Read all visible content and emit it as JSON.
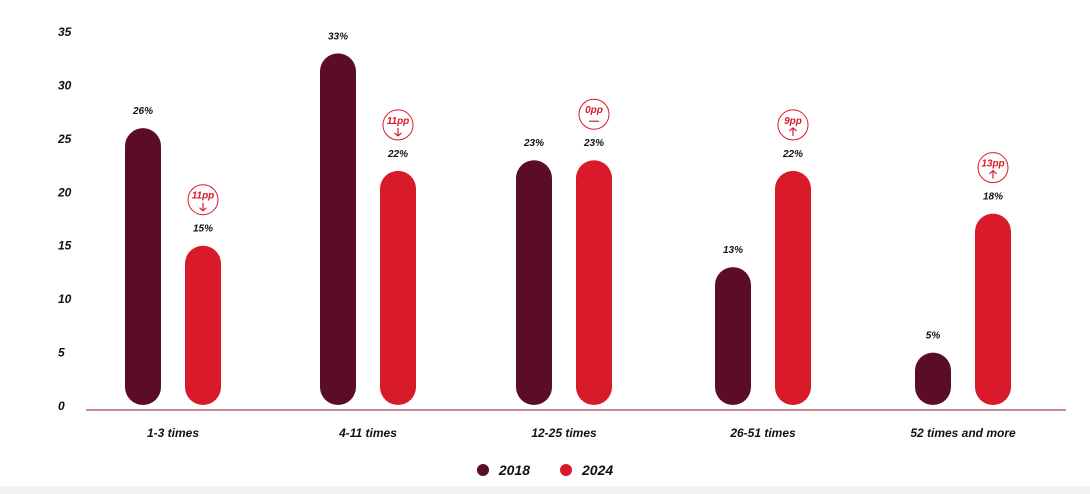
{
  "chart_data": {
    "type": "bar",
    "title": "",
    "xlabel": "",
    "ylabel": "",
    "ylim": [
      0,
      35
    ],
    "y_ticks": [
      "0",
      "5",
      "10",
      "15",
      "20",
      "25",
      "30",
      "35"
    ],
    "grid": false,
    "legend_position": "bottom-center",
    "categories": [
      "1-3 times",
      "4-11 times",
      "12-25 times",
      "26-51 times",
      "52 times and more"
    ],
    "series": [
      {
        "name": "2018",
        "color": "#5a0c28",
        "values": [
          26,
          33,
          23,
          13,
          5
        ],
        "labels": [
          "26%",
          "33%",
          "23%",
          "13%",
          "5%"
        ]
      },
      {
        "name": "2024",
        "color": "#d91a2a",
        "values": [
          15,
          22,
          23,
          22,
          18
        ],
        "labels": [
          "15%",
          "22%",
          "23%",
          "22%",
          "18%"
        ]
      }
    ],
    "changes": [
      {
        "text": "11pp",
        "direction": "down"
      },
      {
        "text": "11pp",
        "direction": "down"
      },
      {
        "text": "0pp",
        "direction": "flat"
      },
      {
        "text": "9pp",
        "direction": "up"
      },
      {
        "text": "13pp",
        "direction": "up"
      }
    ],
    "axis_color": "#8a1a2c",
    "badge_color": "#d91a2a"
  }
}
